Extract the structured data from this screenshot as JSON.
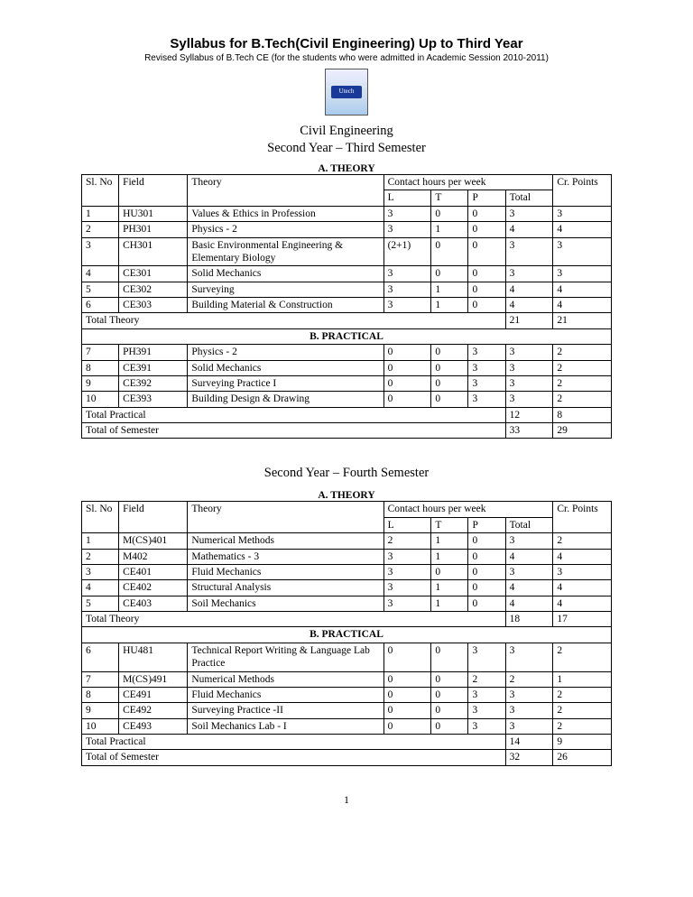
{
  "doc": {
    "title": "Syllabus for B.Tech(Civil Engineering) Up to Third Year",
    "subtitle": "Revised Syllabus of B.Tech CE (for the students who were admitted in Academic Session 2010-2011)",
    "dept": "Civil Engineering",
    "sem3_heading": "Second Year – Third Semester",
    "sem4_heading": "Second Year – Fourth Semester",
    "page_number": "1"
  },
  "labels": {
    "theory_section": "A. THEORY",
    "practical_section": "B. PRACTICAL",
    "sl_no": "Sl. No",
    "field": "Field",
    "theory": "Theory",
    "contact": "Contact hours per week",
    "cr": "Cr. Points",
    "L": "L",
    "T": "T",
    "P": "P",
    "Total": "Total",
    "total_theory": "Total Theory",
    "total_practical": "Total Practical",
    "total_semester": "Total of Semester"
  },
  "table_style": {
    "col_widths_pct": [
      7,
      13,
      37,
      9,
      7,
      7,
      9,
      11
    ],
    "border_color": "#000000",
    "font_family": "Times New Roman",
    "font_size_pt": 11.5
  },
  "sem3": {
    "theory": [
      {
        "sl": "1",
        "field": "HU301",
        "name": "Values & Ethics in Profession",
        "L": "3",
        "T": "0",
        "P": "0",
        "total": "3",
        "cr": "3"
      },
      {
        "sl": "2",
        "field": "PH301",
        "name": "Physics - 2",
        "L": "3",
        "T": "1",
        "P": "0",
        "total": "4",
        "cr": "4"
      },
      {
        "sl": "3",
        "field": "CH301",
        "name": "Basic Environmental Engineering & Elementary Biology",
        "L": "(2+1)",
        "T": "0",
        "P": "0",
        "total": "3",
        "cr": "3"
      },
      {
        "sl": "4",
        "field": "CE301",
        "name": "Solid Mechanics",
        "L": "3",
        "T": "0",
        "P": "0",
        "total": "3",
        "cr": "3"
      },
      {
        "sl": "5",
        "field": "CE302",
        "name": "Surveying",
        "L": "3",
        "T": "1",
        "P": "0",
        "total": "4",
        "cr": "4"
      },
      {
        "sl": "6",
        "field": "CE303",
        "name": "Building Material & Construction",
        "L": "3",
        "T": "1",
        "P": "0",
        "total": "4",
        "cr": "4"
      }
    ],
    "theory_total": {
      "total": "21",
      "cr": "21"
    },
    "practical": [
      {
        "sl": "7",
        "field": "PH391",
        "name": "Physics - 2",
        "L": "0",
        "T": "0",
        "P": "3",
        "total": "3",
        "cr": "2"
      },
      {
        "sl": "8",
        "field": "CE391",
        "name": " Solid Mechanics",
        "L": "0",
        "T": "0",
        "P": "3",
        "total": "3",
        "cr": "2"
      },
      {
        "sl": "9",
        "field": "CE392",
        "name": "Surveying Practice I",
        "L": "0",
        "T": "0",
        "P": "3",
        "total": "3",
        "cr": "2"
      },
      {
        "sl": "10",
        "field": "CE393",
        "name": "Building Design & Drawing",
        "L": "0",
        "T": "0",
        "P": "3",
        "total": "3",
        "cr": "2"
      }
    ],
    "practical_total": {
      "total": "12",
      "cr": "8"
    },
    "semester_total": {
      "total": "33",
      "cr": "29"
    }
  },
  "sem4": {
    "theory": [
      {
        "sl": "1",
        "field": "M(CS)401",
        "name": "Numerical Methods",
        "L": "2",
        "T": "1",
        "P": "0",
        "total": "3",
        "cr": "2"
      },
      {
        "sl": "2",
        "field": "M402",
        "name": "Mathematics - 3",
        "L": "3",
        "T": "1",
        "P": "0",
        "total": "4",
        "cr": "4"
      },
      {
        "sl": "3",
        "field": "CE401",
        "name": " Fluid Mechanics",
        "L": "3",
        "T": "0",
        "P": "0",
        "total": "3",
        "cr": "3"
      },
      {
        "sl": "4",
        "field": "CE402",
        "name": "Structural Analysis",
        "L": "3",
        "T": "1",
        "P": "0",
        "total": "4",
        "cr": "4"
      },
      {
        "sl": "5",
        "field": "CE403",
        "name": "Soil Mechanics",
        "L": "3",
        "T": "1",
        "P": "0",
        "total": "4",
        "cr": "4"
      }
    ],
    "theory_total": {
      "total": "18",
      "cr": "17"
    },
    "practical": [
      {
        "sl": "6",
        "field": "HU481",
        "name": "Technical Report Writing & Language Lab Practice",
        "L": "0",
        "T": "0",
        "P": "3",
        "total": "3",
        "cr": "2"
      },
      {
        "sl": "7",
        "field": "M(CS)491",
        "name": "Numerical Methods",
        "L": "0",
        "T": "0",
        "P": "2",
        "total": "2",
        "cr": "1"
      },
      {
        "sl": "8",
        "field": "CE491",
        "name": "Fluid Mechanics",
        "L": "0",
        "T": "0",
        "P": "3",
        "total": "3",
        "cr": "2"
      },
      {
        "sl": "9",
        "field": "CE492",
        "name": "Surveying Practice -II",
        "L": "0",
        "T": "0",
        "P": "3",
        "total": "3",
        "cr": "2"
      },
      {
        "sl": "10",
        "field": "CE493",
        "name": "Soil Mechanics Lab - I",
        "L": "0",
        "T": "0",
        "P": "3",
        "total": "3",
        "cr": "2"
      }
    ],
    "practical_total": {
      "total": "14",
      "cr": "9"
    },
    "semester_total": {
      "total": "32",
      "cr": "26"
    }
  }
}
